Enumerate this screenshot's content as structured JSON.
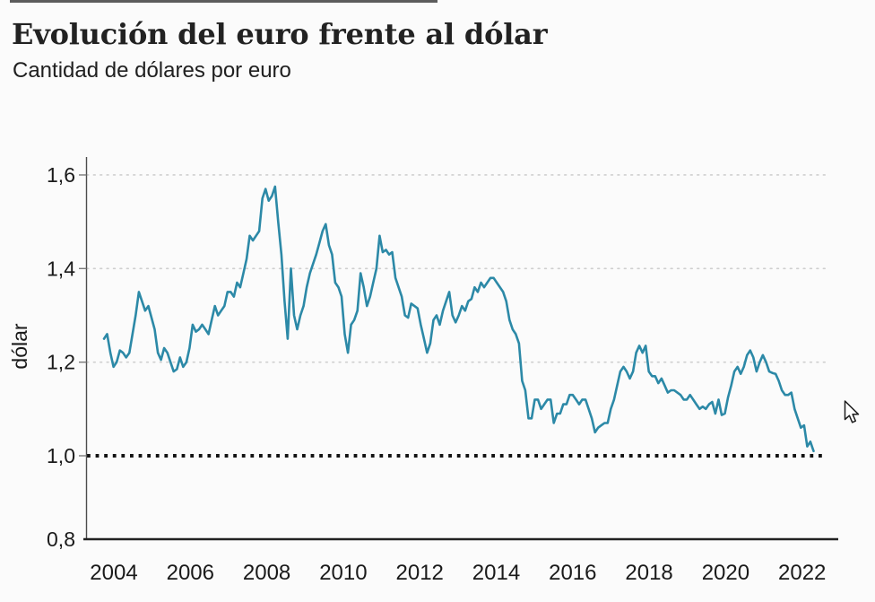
{
  "header": {
    "title": "Evolución del euro frente al dólar",
    "subtitle": "Cantidad de dólares por euro"
  },
  "chart_data": {
    "type": "line",
    "title": "Evolución del euro frente al dólar",
    "subtitle": "Cantidad de dólares por euro",
    "xlabel": "",
    "ylabel": "dólar",
    "ylim": [
      0.8,
      1.65
    ],
    "grid": "horizontal-dotted",
    "legend_position": "none",
    "line_color": "#2c89a7",
    "text_color": "#1a1a1a",
    "grid_color": "#cfcfcf",
    "x_ticks": [
      2004,
      2006,
      2008,
      2010,
      2012,
      2014,
      2016,
      2018,
      2020,
      2022
    ],
    "x_tick_labels": [
      "2004",
      "2006",
      "2008",
      "2010",
      "2012",
      "2014",
      "2016",
      "2018",
      "2020",
      "2022"
    ],
    "y_ticks": [
      1.6,
      1.4,
      1.2,
      1.0,
      0.8
    ],
    "y_tick_labels": [
      "1,6",
      "1,4",
      "1,2",
      "1,0",
      "0,8"
    ],
    "grid_values": [
      1.6,
      1.4,
      1.2
    ],
    "reference_line": {
      "value": 1.0,
      "style": "dotted",
      "color": "#131313"
    },
    "series": [
      {
        "name": "dólares por euro",
        "frequency": "monthly",
        "start": "2004-01",
        "end": "2022-09",
        "values": [
          1.25,
          1.26,
          1.22,
          1.19,
          1.2,
          1.225,
          1.22,
          1.21,
          1.22,
          1.26,
          1.3,
          1.35,
          1.33,
          1.31,
          1.32,
          1.295,
          1.27,
          1.22,
          1.205,
          1.23,
          1.22,
          1.2,
          1.18,
          1.185,
          1.21,
          1.19,
          1.2,
          1.23,
          1.28,
          1.265,
          1.27,
          1.28,
          1.27,
          1.26,
          1.29,
          1.32,
          1.3,
          1.31,
          1.32,
          1.35,
          1.35,
          1.34,
          1.37,
          1.36,
          1.39,
          1.42,
          1.47,
          1.46,
          1.47,
          1.48,
          1.55,
          1.57,
          1.545,
          1.555,
          1.575,
          1.5,
          1.43,
          1.33,
          1.25,
          1.4,
          1.3,
          1.27,
          1.3,
          1.32,
          1.36,
          1.39,
          1.41,
          1.43,
          1.455,
          1.48,
          1.495,
          1.45,
          1.43,
          1.37,
          1.36,
          1.34,
          1.26,
          1.22,
          1.28,
          1.29,
          1.31,
          1.39,
          1.36,
          1.32,
          1.34,
          1.37,
          1.4,
          1.47,
          1.435,
          1.44,
          1.43,
          1.435,
          1.38,
          1.36,
          1.34,
          1.3,
          1.295,
          1.325,
          1.32,
          1.315,
          1.28,
          1.25,
          1.22,
          1.24,
          1.29,
          1.3,
          1.28,
          1.31,
          1.33,
          1.35,
          1.3,
          1.285,
          1.3,
          1.32,
          1.31,
          1.33,
          1.335,
          1.36,
          1.35,
          1.37,
          1.36,
          1.37,
          1.38,
          1.38,
          1.37,
          1.36,
          1.35,
          1.33,
          1.29,
          1.27,
          1.26,
          1.24,
          1.16,
          1.14,
          1.08,
          1.08,
          1.12,
          1.12,
          1.1,
          1.11,
          1.12,
          1.12,
          1.07,
          1.09,
          1.09,
          1.11,
          1.11,
          1.13,
          1.13,
          1.12,
          1.11,
          1.12,
          1.12,
          1.1,
          1.08,
          1.05,
          1.06,
          1.065,
          1.07,
          1.07,
          1.1,
          1.12,
          1.15,
          1.18,
          1.19,
          1.18,
          1.165,
          1.18,
          1.22,
          1.235,
          1.22,
          1.235,
          1.18,
          1.17,
          1.17,
          1.155,
          1.165,
          1.15,
          1.135,
          1.14,
          1.14,
          1.135,
          1.13,
          1.12,
          1.12,
          1.13,
          1.12,
          1.11,
          1.1,
          1.105,
          1.1,
          1.11,
          1.115,
          1.09,
          1.12,
          1.087,
          1.09,
          1.125,
          1.15,
          1.18,
          1.19,
          1.175,
          1.19,
          1.215,
          1.225,
          1.21,
          1.18,
          1.2,
          1.215,
          1.2,
          1.18,
          1.177,
          1.175,
          1.16,
          1.14,
          1.13,
          1.13,
          1.135,
          1.1,
          1.08,
          1.06,
          1.065,
          1.02,
          1.03,
          1.01
        ]
      }
    ]
  }
}
